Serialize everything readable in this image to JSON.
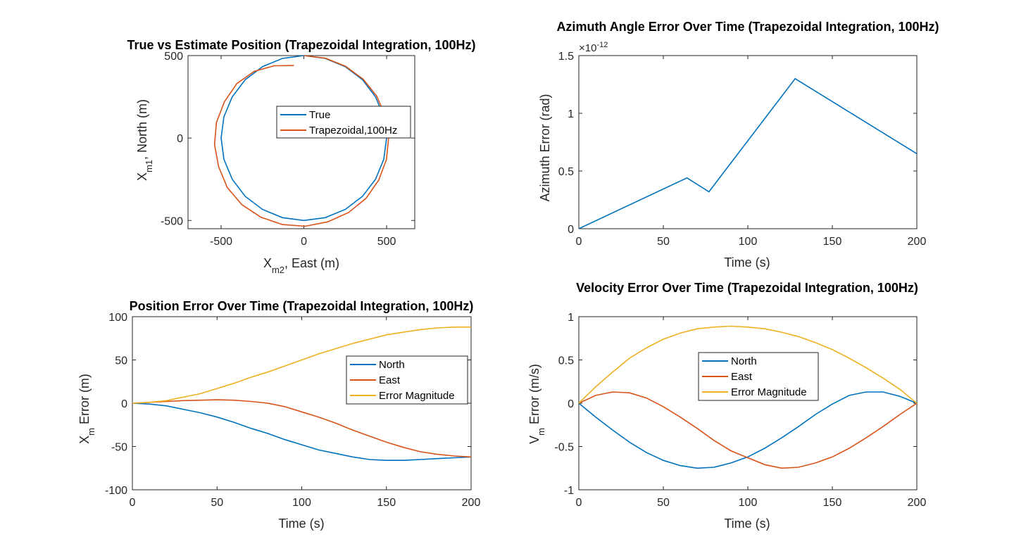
{
  "figure": {
    "background": "#ffffff",
    "colors": {
      "series1": "#0072BD",
      "series2": "#D95319",
      "series3": "#EDB120",
      "axis": "#262626"
    }
  },
  "chart_data": [
    {
      "id": "pos",
      "type": "line",
      "title": "True vs Estimate Position (Trapezoidal Integration, 100Hz)",
      "xlabel": {
        "base": "X",
        "sub": "m2",
        "rest": ", East (m)"
      },
      "ylabel": {
        "base": "X",
        "sub": "m1",
        "rest": ", North (m)"
      },
      "xlim": [
        -700,
        670
      ],
      "ylim": [
        -550,
        500
      ],
      "xticks": [
        -500,
        0,
        500
      ],
      "yticks": [
        -500,
        0,
        500
      ],
      "xticklabels": [
        "-500",
        "0",
        "500"
      ],
      "yticklabels": [
        "-500",
        "0",
        "500"
      ],
      "grid": false,
      "legend": {
        "placement": "inside-center-right",
        "entries": [
          "True",
          "Trapezoidal,100Hz"
        ]
      },
      "series": [
        {
          "name": "True",
          "color": "#0072BD",
          "x": [
            0,
            129,
            250,
            354,
            433,
            483,
            500,
            483,
            433,
            354,
            250,
            129,
            0,
            -129,
            -250,
            -354,
            -433,
            -483,
            -500,
            -483,
            -433,
            -354,
            -250,
            -129,
            0
          ],
          "y": [
            500,
            483,
            433,
            354,
            250,
            129,
            0,
            -129,
            -250,
            -354,
            -433,
            -483,
            -500,
            -483,
            -433,
            -354,
            -250,
            -129,
            0,
            129,
            250,
            354,
            433,
            483,
            500
          ]
        },
        {
          "name": "Trapezoidal,100Hz",
          "color": "#D95319",
          "x": [
            0,
            130,
            252,
            358,
            440,
            492,
            512,
            499,
            452,
            375,
            270,
            145,
            8,
            -130,
            -260,
            -375,
            -463,
            -515,
            -540,
            -528,
            -480,
            -405,
            -300,
            -180,
            -60
          ],
          "y": [
            500,
            484,
            435,
            357,
            255,
            134,
            2,
            -130,
            -256,
            -366,
            -452,
            -508,
            -535,
            -525,
            -480,
            -404,
            -300,
            -174,
            -40,
            95,
            220,
            330,
            405,
            438,
            440
          ]
        }
      ]
    },
    {
      "id": "az",
      "type": "line",
      "title": "Azimuth Angle Error Over Time (Trapezoidal Integration, 100Hz)",
      "xlabel": "Time (s)",
      "ylabel": "Azimuth Error (rad)",
      "exponent": {
        "base": "×10",
        "power": "-12"
      },
      "xlim": [
        0,
        200
      ],
      "ylim": [
        0,
        1.5e-12
      ],
      "xticks": [
        0,
        50,
        100,
        150,
        200
      ],
      "yticks": [
        0,
        5e-13,
        1e-12,
        1.5e-12
      ],
      "xticklabels": [
        "0",
        "50",
        "100",
        "150",
        "200"
      ],
      "yticklabels": [
        "0",
        "0.5",
        "1",
        "1.5"
      ],
      "grid": false,
      "series": [
        {
          "color": "#0072BD",
          "x": [
            0,
            64,
            77,
            128,
            200
          ],
          "y": [
            0,
            4.4e-13,
            3.2e-13,
            1.3e-12,
            6.5e-13
          ]
        }
      ]
    },
    {
      "id": "perr",
      "type": "line",
      "title": "Position Error Over Time (Trapezoidal Integration, 100Hz)",
      "xlabel": "Time (s)",
      "ylabel": {
        "base": "X",
        "sub": "m",
        "rest": " Error (m)"
      },
      "xlim": [
        0,
        200
      ],
      "ylim": [
        -100,
        100
      ],
      "xticks": [
        0,
        50,
        100,
        150,
        200
      ],
      "yticks": [
        -100,
        -50,
        0,
        50,
        100
      ],
      "xticklabels": [
        "0",
        "50",
        "100",
        "150",
        "200"
      ],
      "yticklabels": [
        "-100",
        "-50",
        "0",
        "50",
        "100"
      ],
      "grid": false,
      "legend": {
        "placement": "inside-upper-right",
        "entries": [
          "North",
          "East",
          "Error Magnitude"
        ]
      },
      "x": [
        0,
        10,
        20,
        30,
        40,
        50,
        60,
        70,
        80,
        90,
        100,
        110,
        120,
        130,
        140,
        150,
        160,
        170,
        180,
        190,
        200
      ],
      "series": [
        {
          "name": "North",
          "color": "#0072BD",
          "values": [
            0,
            -1,
            -3,
            -7,
            -11,
            -16,
            -22,
            -29,
            -35,
            -42,
            -48,
            -54,
            -58,
            -62,
            -65,
            -66,
            -66,
            -65,
            -64,
            -63,
            -62
          ]
        },
        {
          "name": "East",
          "color": "#D95319",
          "values": [
            0,
            1,
            2,
            3,
            3.5,
            4,
            3.5,
            2,
            0,
            -4,
            -10,
            -16,
            -23,
            -31,
            -38,
            -45,
            -51,
            -56,
            -59,
            -61,
            -62
          ]
        },
        {
          "name": "Error Magnitude",
          "color": "#EDB120",
          "values": [
            0,
            1,
            3,
            7,
            11,
            17,
            23,
            30,
            36,
            43,
            50,
            57,
            63,
            69,
            74,
            79,
            82,
            85,
            87,
            88,
            88
          ]
        }
      ]
    },
    {
      "id": "verr",
      "type": "line",
      "title": "Velocity Error Over Time (Trapezoidal Integration, 100Hz)",
      "xlabel": "Time (s)",
      "ylabel": {
        "base": "V",
        "sub": "m",
        "rest": " Error (m/s)"
      },
      "xlim": [
        0,
        200
      ],
      "ylim": [
        -1,
        1
      ],
      "xticks": [
        0,
        50,
        100,
        150,
        200
      ],
      "yticks": [
        -1,
        -0.5,
        0,
        0.5,
        1
      ],
      "xticklabels": [
        "0",
        "50",
        "100",
        "150",
        "200"
      ],
      "yticklabels": [
        "-1",
        "-0.5",
        "0",
        "0.5",
        "1"
      ],
      "grid": false,
      "legend": {
        "placement": "inside-upper-center",
        "entries": [
          "North",
          "East",
          "Error Magnitude"
        ]
      },
      "x": [
        0,
        10,
        20,
        30,
        40,
        50,
        60,
        70,
        80,
        90,
        100,
        110,
        120,
        130,
        140,
        150,
        160,
        170,
        180,
        190,
        200
      ],
      "series": [
        {
          "name": "North",
          "color": "#0072BD",
          "values": [
            0,
            -0.16,
            -0.31,
            -0.45,
            -0.57,
            -0.66,
            -0.72,
            -0.75,
            -0.74,
            -0.69,
            -0.62,
            -0.52,
            -0.4,
            -0.27,
            -0.13,
            -0.01,
            0.09,
            0.13,
            0.13,
            0.08,
            0
          ]
        },
        {
          "name": "East",
          "color": "#D95319",
          "values": [
            0,
            0.09,
            0.13,
            0.12,
            0.06,
            -0.04,
            -0.16,
            -0.29,
            -0.43,
            -0.55,
            -0.63,
            -0.71,
            -0.75,
            -0.74,
            -0.69,
            -0.62,
            -0.52,
            -0.4,
            -0.27,
            -0.13,
            0
          ]
        },
        {
          "name": "Error Magnitude",
          "color": "#EDB120",
          "values": [
            0,
            0.19,
            0.36,
            0.52,
            0.64,
            0.74,
            0.81,
            0.86,
            0.88,
            0.89,
            0.88,
            0.86,
            0.82,
            0.77,
            0.7,
            0.62,
            0.52,
            0.41,
            0.29,
            0.16,
            0
          ]
        }
      ]
    }
  ]
}
